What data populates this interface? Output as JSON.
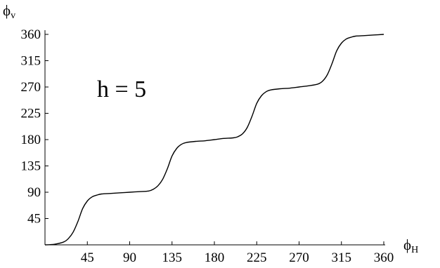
{
  "chart_data": {
    "type": "line",
    "title": "",
    "annotation": "h = 5",
    "xlabel": {
      "symbol": "ϕ",
      "subscript": "H"
    },
    "ylabel": {
      "symbol": "ϕ",
      "subscript": "v"
    },
    "xlim": [
      0,
      360
    ],
    "ylim": [
      0,
      360
    ],
    "xticks": [
      45,
      90,
      135,
      180,
      225,
      270,
      315,
      360
    ],
    "yticks": [
      45,
      90,
      135,
      180,
      225,
      270,
      315,
      360
    ],
    "grid": false,
    "line_color": "#000000",
    "series": [
      {
        "x": [
          0,
          10,
          20,
          25,
          30,
          35,
          40,
          45,
          50,
          55,
          60,
          70,
          80,
          90,
          100,
          110,
          115,
          120,
          125,
          130,
          135,
          140,
          145,
          150,
          160,
          170,
          180,
          190,
          200,
          205,
          210,
          215,
          220,
          225,
          230,
          235,
          240,
          250,
          260,
          270,
          280,
          290,
          295,
          300,
          305,
          310,
          315,
          320,
          325,
          330,
          340,
          350,
          360
        ],
        "y": [
          0,
          1,
          5,
          11,
          22,
          40,
          62,
          75,
          82,
          85,
          87,
          88,
          89,
          90,
          91,
          92,
          95,
          101,
          112,
          130,
          152,
          165,
          172,
          175,
          177,
          178,
          180,
          182,
          183,
          185,
          190,
          201,
          220,
          242,
          255,
          262,
          265,
          267,
          268,
          270,
          272,
          275,
          280,
          291,
          310,
          332,
          345,
          352,
          355,
          357,
          358,
          359,
          360
        ]
      }
    ]
  }
}
